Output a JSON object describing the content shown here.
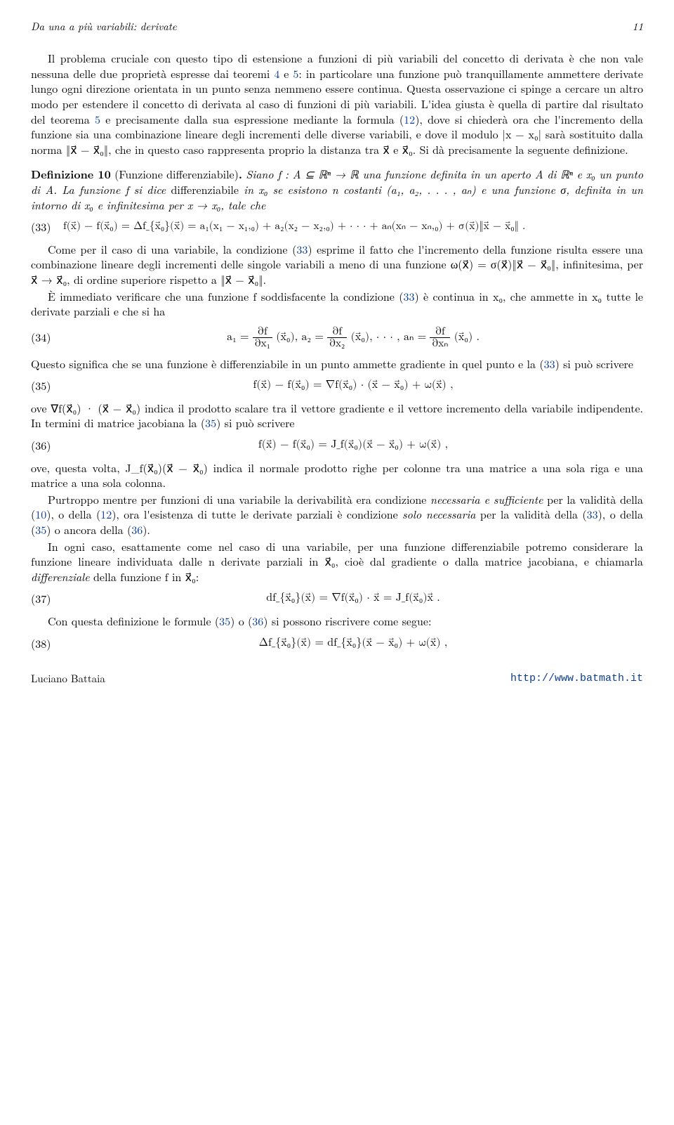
{
  "header": {
    "left": "Da una a più variabili: derivate",
    "pagenum": "11"
  },
  "p1": "Il problema cruciale con questo tipo di estensione a funzioni di più variabili del concetto di derivata è che non vale nessuna delle due proprietà espresse dai teoremi ",
  "p1_link1": "4",
  "p1_mid1": " e ",
  "p1_link2": "5",
  "p1_cont": ": in particolare una funzione può tranquillamente ammettere derivate lungo ogni direzione orientata in un punto senza nemmeno essere continua. Questa osservazione ci spinge a cercare un altro modo per estendere il concetto di derivata al caso di funzioni di più variabili. L'idea giusta è quella di partire dal risultato del teorema ",
  "p1_link3": "5",
  "p1_mid2": " e precisamente dalla sua espressione mediante la formula (",
  "p1_link4": "12",
  "p1_end": "), dove si chiederà ora che l'incremento della funzione sia una combinazione lineare degli incrementi delle diverse variabili, e dove il modulo |x − x₀| sarà sostituito dalla norma ‖x⃗ − x⃗₀‖, che in questo caso rappresenta proprio la distanza tra x⃗ e x⃗₀. Si dà precisamente la seguente definizione.",
  "def": {
    "head": "Definizione 10",
    "paren": " (Funzione differenziabile)",
    "body1": "Siano f : A ⊆ ℝⁿ → ℝ una funzione definita in un aperto A di ℝⁿ e x₀ un punto di A. La funzione f si dice ",
    "body2": "differenziabile",
    "body3": " in x₀ se esistono n costanti (a₁, a₂, . . . , aₙ) e una funzione σ, definita in un intorno di x⃗₀ e infinitesima per x⃗ → x⃗₀, tale che"
  },
  "eq33": {
    "num": "(33)",
    "body": "f(x⃗) − f(x⃗₀) = Δf_{x⃗₀}(x⃗) = a₁(x₁ − x₁,₀) + a₂(x₂ − x₂,₀) + · · · + aₙ(xₙ − xₙ,₀) + σ(x⃗)‖x⃗ − x⃗₀‖ ."
  },
  "p2a": "Come per il caso di una variabile, la condizione (",
  "p2_link1": "33",
  "p2b": ") esprime il fatto che l'incremento della funzione risulta essere una combinazione lineare degli incrementi delle singole variabili a meno di una funzione ω(x⃗) = σ(x⃗)‖x⃗ − x⃗₀‖, infinitesima, per x⃗ → x⃗₀, di ordine superiore rispetto a ‖x⃗ − x⃗₀‖.",
  "p3a": "È immediato verificare che una funzione f soddisfacente la condizione (",
  "p3_link1": "33",
  "p3b": ") è continua in x₀, che ammette in x₀ tutte le derivate parziali e che si ha",
  "eq34": {
    "num": "(34)",
    "a1": "a₁ =",
    "f1n": "∂f",
    "f1d": "∂x₁",
    "x1": "(x⃗₀),  a₂ =",
    "f2n": "∂f",
    "f2d": "∂x₂",
    "x2": "(x⃗₀),  · · · ,  aₙ =",
    "f3n": "∂f",
    "f3d": "∂xₙ",
    "x3": "(x⃗₀) ."
  },
  "p4a": "Questo significa che se una funzione è differenziabile in un punto ammette gradiente in quel punto e la (",
  "p4_link1": "33",
  "p4b": ") si può scrivere",
  "eq35": {
    "num": "(35)",
    "body": "f(x⃗) − f(x⃗₀) = ∇f(x⃗₀) · (x⃗ − x⃗₀) + ω(x⃗) ,"
  },
  "p5a": "ove ∇f(x⃗₀) · (x⃗ − x⃗₀) indica il prodotto scalare tra il vettore gradiente e il vettore incremento della variabile indipendente. In termini di matrice jacobiana la (",
  "p5_link1": "35",
  "p5b": ") si può scrivere",
  "eq36": {
    "num": "(36)",
    "body": "f(x⃗) − f(x⃗₀) = J_f(x⃗₀)(x⃗ − x⃗₀) + ω(x⃗) ,"
  },
  "p6": "ove, questa volta, J_f(x⃗₀)(x⃗ − x⃗₀) indica il normale prodotto righe per colonne tra una matrice a una sola riga e una matrice a una sola colonna.",
  "p7a": "Purtroppo mentre per funzioni di una variabile la derivabilità era condizione ",
  "p7i1": "necessaria e sufficiente",
  "p7b": " per la validità della (",
  "p7_l1": "10",
  "p7c": "), o della (",
  "p7_l2": "12",
  "p7d": "), ora l'esistenza di tutte le derivate parziali è condizione ",
  "p7i2": "solo necessaria",
  "p7e": " per la validità della (",
  "p7_l3": "33",
  "p7f": "), o della (",
  "p7_l4": "35",
  "p7g": ") o ancora della (",
  "p7_l5": "36",
  "p7h": ").",
  "p8a": "In ogni caso, esattamente come nel caso di una variabile, per una funzione differenziabile potremo considerare la funzione lineare individuata dalle n derivate parziali in x⃗₀, cioè dal gradiente o dalla matrice jacobiana, e chiamarla ",
  "p8i": "differenziale",
  "p8b": " della funzione f in x⃗₀:",
  "eq37": {
    "num": "(37)",
    "body": "df_{x⃗₀}(x⃗) = ∇f(x⃗₀) · x⃗ = J_f(x⃗₀)x⃗ ."
  },
  "p9a": "Con questa definizione le formule (",
  "p9_l1": "35",
  "p9b": ") o (",
  "p9_l2": "36",
  "p9c": ") si possono riscrivere come segue:",
  "eq38": {
    "num": "(38)",
    "body": "Δf_{x⃗₀}(x⃗) = df_{x⃗₀}(x⃗ − x⃗₀) + ω(x⃗) ,"
  },
  "footer": {
    "author": "Luciano Battaia",
    "url": "http://www.batmath.it"
  }
}
